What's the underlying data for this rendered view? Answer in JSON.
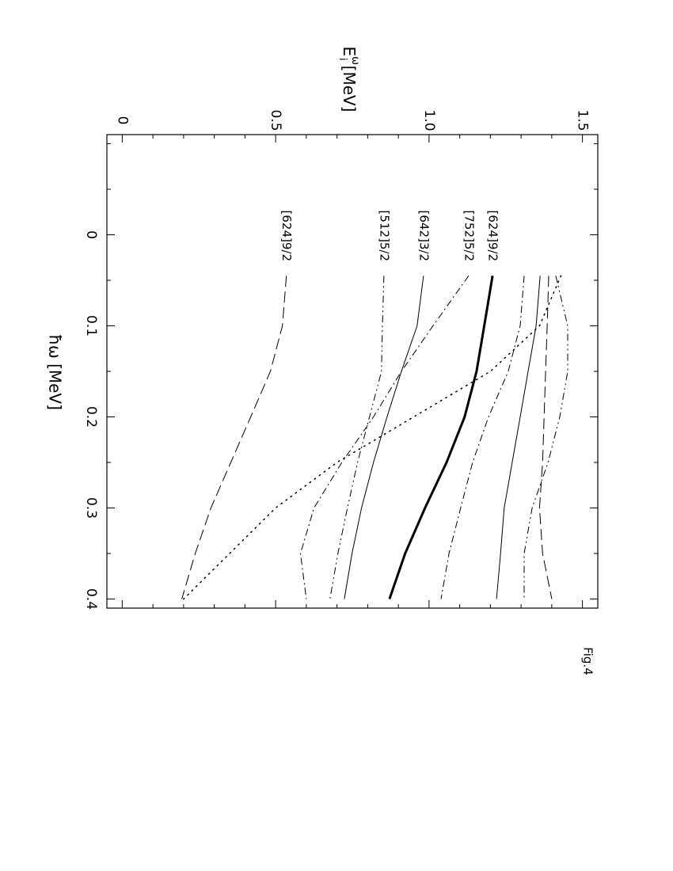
{
  "chart_data": {
    "type": "line",
    "figure_label": "Fig.4",
    "xlabel": "ħω [MeV]",
    "ylabel": "E",
    "ylabel_sup": "ω",
    "ylabel_sub": "i",
    "ylabel_unit": "[MeV]",
    "xlim": [
      -0.11,
      0.41
    ],
    "ylim": [
      -0.05,
      1.55
    ],
    "xticks": [
      0,
      0.1,
      0.2,
      0.3,
      0.4
    ],
    "yticks": [
      0,
      0.5,
      {
        "value": 1,
        "label": "1.0"
      },
      {
        "value": 1.5,
        "label": "1.5"
      }
    ],
    "xminor": [
      -0.1,
      -0.05,
      0.05,
      0.15,
      0.25,
      0.35
    ],
    "yminor": [
      0.1,
      0.2,
      0.3,
      0.4,
      0.6,
      0.7,
      0.8,
      0.9,
      1.1,
      1.2,
      1.3,
      1.4
    ],
    "x": [
      0.045,
      0.1,
      0.15,
      0.2,
      0.25,
      0.3,
      0.35,
      0.4
    ],
    "series": [
      {
        "name": "[624]9/2",
        "color": "#000000",
        "dash": "solid",
        "width": 3,
        "values": [
          1.207,
          1.18,
          1.155,
          1.116,
          1.057,
          0.987,
          0.922,
          0.871
        ]
      },
      {
        "name": "[752]5/2",
        "color": "#000000",
        "dash": "dashdot",
        "width": 1,
        "values": [
          1.129,
          1.013,
          0.91,
          0.819,
          0.716,
          0.625,
          0.581,
          0.6
        ]
      },
      {
        "name": "[642]3/2",
        "color": "#000000",
        "dash": "solid",
        "width": 1,
        "values": [
          0.982,
          0.961,
          0.91,
          0.863,
          0.819,
          0.78,
          0.749,
          0.724
        ]
      },
      {
        "name": "[512]5/2",
        "color": "#000000",
        "dash": "dashdotdot",
        "width": 1,
        "values": [
          0.853,
          0.848,
          0.845,
          0.806,
          0.767,
          0.734,
          0.703,
          0.677
        ]
      },
      {
        "name": "[624]9/2",
        "color": "#000000",
        "dash": "longdash",
        "width": 1,
        "values": [
          0.535,
          0.522,
          0.483,
          0.419,
          0.354,
          0.289,
          0.238,
          0.194
        ]
      },
      {
        "color": "#000000",
        "dash": "dashdot",
        "width": 1,
        "values": [
          1.31,
          1.297,
          1.258,
          1.194,
          1.142,
          1.103,
          1.065,
          1.039
        ]
      },
      {
        "color": "#000000",
        "dash": "solid",
        "width": 1,
        "values": [
          1.362,
          1.349,
          1.323,
          1.297,
          1.271,
          1.245,
          1.233,
          1.22
        ]
      },
      {
        "color": "#000000",
        "dash": "dashdotdot",
        "width": 1,
        "values": [
          1.413,
          1.452,
          1.452,
          1.426,
          1.388,
          1.336,
          1.31,
          1.31
        ]
      },
      {
        "color": "#000000",
        "dash": "longdash",
        "width": 1,
        "values": [
          1.39,
          1.385,
          1.38,
          1.375,
          1.37,
          1.36,
          1.37,
          1.4
        ]
      },
      {
        "color": "#000000",
        "dash": "dotted",
        "width": 1.5,
        "values": [
          1.43,
          1.36,
          1.2,
          0.95,
          0.7,
          0.5,
          0.35,
          0.2
        ]
      }
    ]
  }
}
